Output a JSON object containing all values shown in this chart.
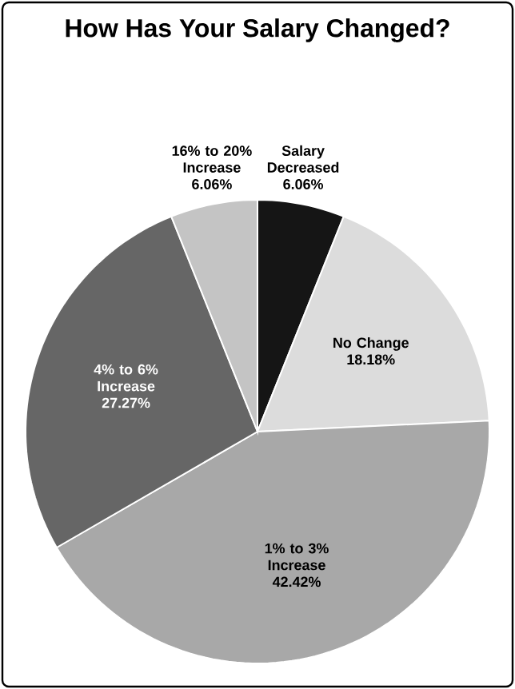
{
  "chart_data": {
    "type": "pie",
    "title": "How Has Your Salary Changed?",
    "categories": [
      "Salary Decreased",
      "No Change",
      "1% to 3% Increase",
      "4% to 6% Increase",
      "16% to 20% Increase"
    ],
    "values": [
      6.06,
      18.18,
      42.42,
      27.27,
      6.06
    ],
    "value_labels": [
      "6.06%",
      "18.18%",
      "42.42%",
      "27.27%",
      "6.06%"
    ],
    "colors": [
      "#151515",
      "#dcdcdc",
      "#a8a8a8",
      "#666666",
      "#c4c4c4"
    ]
  }
}
